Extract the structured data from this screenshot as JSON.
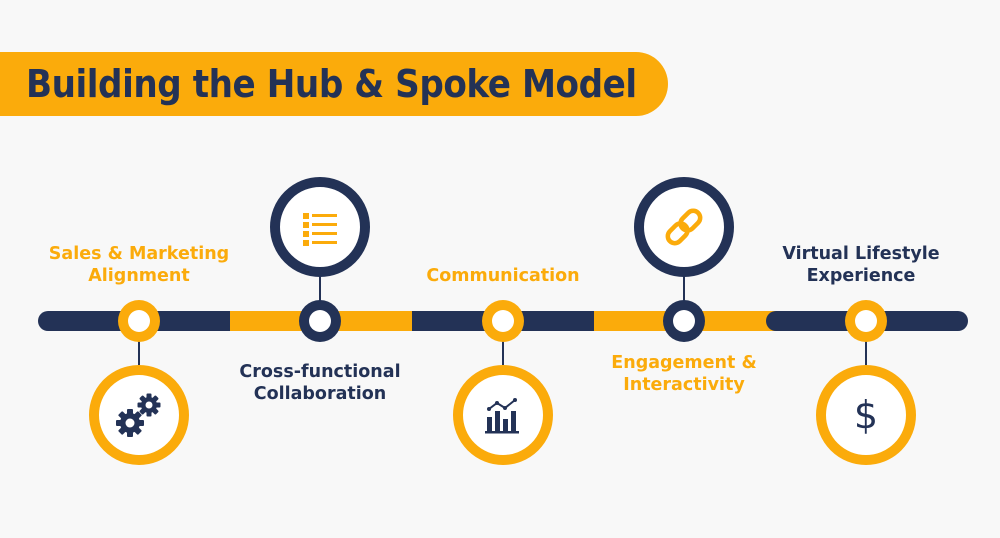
{
  "title": "Building the Hub & Spoke Model",
  "colors": {
    "accent": "#fbab0b",
    "navy": "#233256",
    "background": "#f8f8f8"
  },
  "steps": [
    {
      "label_line1": "Sales & Marketing",
      "label_line2": "Alignment",
      "icon": "gears-icon"
    },
    {
      "label_line1": "Cross-functional",
      "label_line2": "Collaboration",
      "icon": "list-icon"
    },
    {
      "label_line1": "Communication",
      "label_line2": "",
      "icon": "chart-icon"
    },
    {
      "label_line1": "Engagement &",
      "label_line2": "Interactivity",
      "icon": "link-icon"
    },
    {
      "label_line1": "Virtual Lifestyle",
      "label_line2": "Experience",
      "icon": "dollar-icon"
    }
  ]
}
